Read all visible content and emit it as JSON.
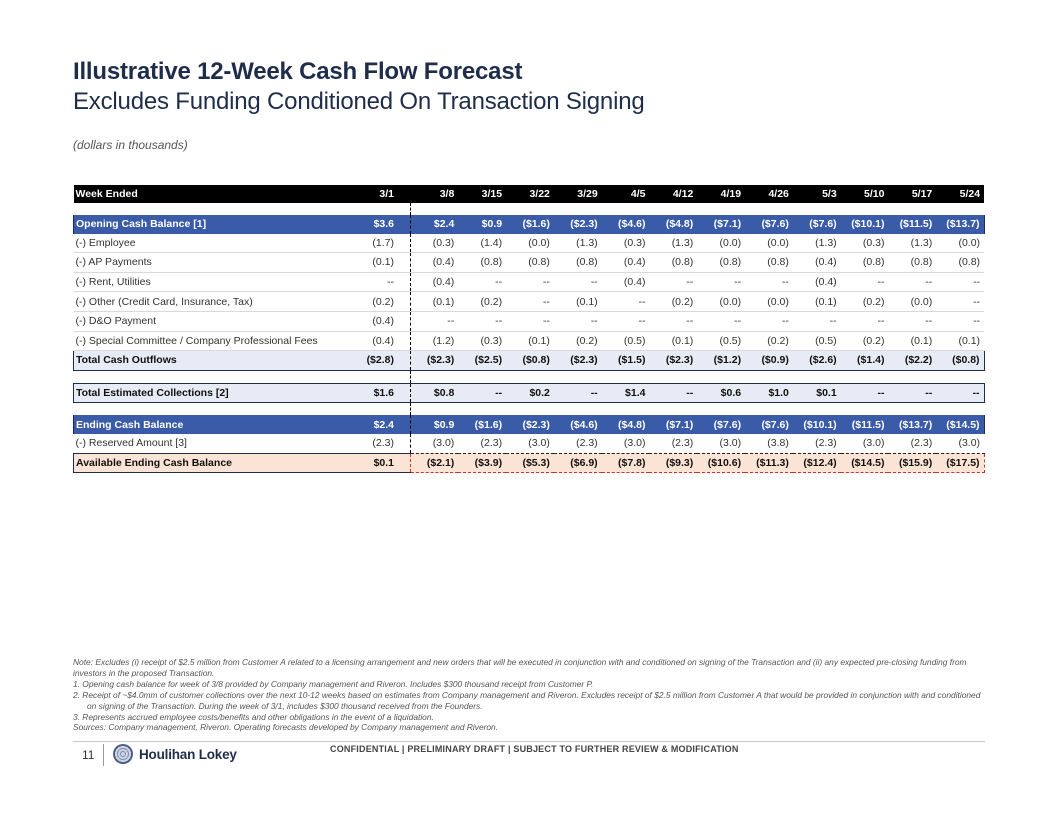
{
  "header": {
    "title": "Illustrative 12-Week Cash Flow Forecast",
    "subtitle": "Excludes Funding Conditioned On Transaction Signing",
    "units": "(dollars in thousands)"
  },
  "table": {
    "week_label": "Week Ended",
    "weeks": [
      "3/1",
      "3/8",
      "3/15",
      "3/22",
      "3/29",
      "4/5",
      "4/12",
      "4/19",
      "4/26",
      "5/3",
      "5/10",
      "5/17",
      "5/24"
    ],
    "opening": {
      "label": "Opening Cash Balance [1]",
      "values": [
        "$3.6",
        "$2.4",
        "$0.9",
        "($1.6)",
        "($2.3)",
        "($4.6)",
        "($4.8)",
        "($7.1)",
        "($7.6)",
        "($7.6)",
        "($10.1)",
        "($11.5)",
        "($13.7)"
      ]
    },
    "outflows": [
      {
        "label": "(-) Employee",
        "values": [
          "(1.7)",
          "(0.3)",
          "(1.4)",
          "(0.0)",
          "(1.3)",
          "(0.3)",
          "(1.3)",
          "(0.0)",
          "(0.0)",
          "(1.3)",
          "(0.3)",
          "(1.3)",
          "(0.0)"
        ]
      },
      {
        "label": "(-) AP Payments",
        "values": [
          "(0.1)",
          "(0.4)",
          "(0.8)",
          "(0.8)",
          "(0.8)",
          "(0.4)",
          "(0.8)",
          "(0.8)",
          "(0.8)",
          "(0.4)",
          "(0.8)",
          "(0.8)",
          "(0.8)"
        ]
      },
      {
        "label": "(-) Rent, Utilities",
        "values": [
          "--",
          "(0.4)",
          "--",
          "--",
          "--",
          "(0.4)",
          "--",
          "--",
          "--",
          "(0.4)",
          "--",
          "--",
          "--"
        ]
      },
      {
        "label": "(-) Other (Credit Card, Insurance, Tax)",
        "values": [
          "(0.2)",
          "(0.1)",
          "(0.2)",
          "--",
          "(0.1)",
          "--",
          "(0.2)",
          "(0.0)",
          "(0.0)",
          "(0.1)",
          "(0.2)",
          "(0.0)",
          "--"
        ]
      },
      {
        "label": "(-) D&O Payment",
        "values": [
          "(0.4)",
          "--",
          "--",
          "--",
          "--",
          "--",
          "--",
          "--",
          "--",
          "--",
          "--",
          "--",
          "--"
        ]
      },
      {
        "label": "(-) Special Committee / Company Professional Fees",
        "values": [
          "(0.4)",
          "(1.2)",
          "(0.3)",
          "(0.1)",
          "(0.2)",
          "(0.5)",
          "(0.1)",
          "(0.5)",
          "(0.2)",
          "(0.5)",
          "(0.2)",
          "(0.1)",
          "(0.1)"
        ]
      }
    ],
    "total_outflows": {
      "label": "Total Cash Outflows",
      "values": [
        "($2.8)",
        "($2.3)",
        "($2.5)",
        "($0.8)",
        "($2.3)",
        "($1.5)",
        "($2.3)",
        "($1.2)",
        "($0.9)",
        "($2.6)",
        "($1.4)",
        "($2.2)",
        "($0.8)"
      ]
    },
    "collections": {
      "label": "Total Estimated Collections [2]",
      "values": [
        "$1.6",
        "$0.8",
        "--",
        "$0.2",
        "--",
        "$1.4",
        "--",
        "$0.6",
        "$1.0",
        "$0.1",
        "--",
        "--",
        "--"
      ]
    },
    "ending": {
      "label": "Ending Cash Balance",
      "values": [
        "$2.4",
        "$0.9",
        "($1.6)",
        "($2.3)",
        "($4.6)",
        "($4.8)",
        "($7.1)",
        "($7.6)",
        "($7.6)",
        "($10.1)",
        "($11.5)",
        "($13.7)",
        "($14.5)"
      ]
    },
    "reserved": {
      "label": "(-) Reserved Amount [3]",
      "values": [
        "(2.3)",
        "(3.0)",
        "(2.3)",
        "(3.0)",
        "(2.3)",
        "(3.0)",
        "(2.3)",
        "(3.0)",
        "(3.8)",
        "(2.3)",
        "(3.0)",
        "(2.3)",
        "(3.0)"
      ]
    },
    "available": {
      "label": "Available Ending Cash Balance",
      "values": [
        "$0.1",
        "($2.1)",
        "($3.9)",
        "($5.3)",
        "($6.9)",
        "($7.8)",
        "($9.3)",
        "($10.6)",
        "($11.3)",
        "($12.4)",
        "($14.5)",
        "($15.9)",
        "($17.5)"
      ]
    }
  },
  "notes": {
    "main": "Note: Excludes (i) receipt of $2.5 million from Customer A related to a licensing arrangement and new orders that will be executed in conjunction with and conditioned on signing of the Transaction and (ii) any expected pre-closing funding from investors in the proposed Transaction.",
    "items": [
      "1.   Opening cash balance for week of 3/8 provided by Company management and Riveron. Includes $300 thousand receipt from Customer P.",
      "2.   Receipt of ~$4.0mm of customer collections over the next 10-12 weeks based on estimates from Company management and Riveron. Excludes receipt of $2.5 million from Customer A that would be provided in conjunction with and conditioned on signing of the Transaction. During the week of 3/1, includes $300 thousand received from the Founders.",
      "3.   Represents accrued employee costs/benefits and other obligations in the event of a liquidation."
    ],
    "sources": "Sources: Company management, Riveron. Operating forecasts developed by Company management and Riveron."
  },
  "footer": {
    "page_number": "11",
    "logo_text": "Houlihan Lokey",
    "confidential": "CONFIDENTIAL | PRELIMINARY DRAFT | SUBJECT TO FURTHER REVIEW & MODIFICATION"
  }
}
